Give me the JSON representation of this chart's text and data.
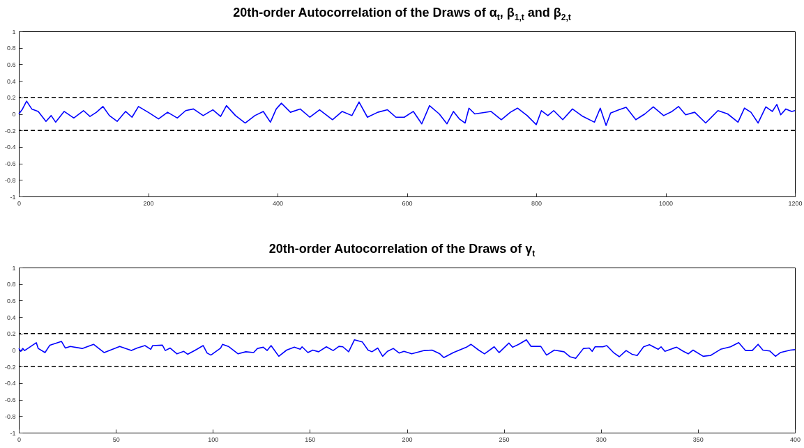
{
  "chart_data": [
    {
      "type": "line",
      "title": "20th-order Autocorrelation of the Draws of α$_{t}$, β$_{1,t}$ and β$_{2,t}$",
      "x": [
        0,
        5,
        12,
        20,
        30,
        42,
        50,
        57,
        70,
        85,
        100,
        110,
        120,
        130,
        140,
        152,
        165,
        175,
        185,
        200,
        216,
        230,
        245,
        258,
        270,
        285,
        300,
        312,
        321,
        335,
        350,
        365,
        378,
        389,
        398,
        406,
        420,
        435,
        450,
        465,
        485,
        500,
        515,
        526,
        539,
        555,
        570,
        583,
        596,
        610,
        623,
        635,
        650,
        662,
        672,
        681,
        690,
        696,
        705,
        714,
        730,
        746,
        760,
        771,
        786,
        800,
        808,
        818,
        827,
        841,
        856,
        872,
        890,
        899,
        908,
        915,
        928,
        939,
        954,
        968,
        981,
        997,
        1010,
        1020,
        1031,
        1045,
        1062,
        1081,
        1096,
        1112,
        1122,
        1132,
        1143,
        1155,
        1165,
        1172,
        1178,
        1186,
        1195,
        1200
      ],
      "ylim": [
        -1,
        1
      ],
      "yticks": [
        -1,
        -0.8,
        -0.6,
        -0.4,
        -0.2,
        0,
        0.2,
        0.4,
        0.6,
        0.8,
        1
      ],
      "xlim": [
        0,
        1200
      ],
      "xticks": [
        0,
        200,
        400,
        600,
        800,
        1000,
        1200
      ],
      "ref_lines": [
        {
          "axis": "y",
          "value": 0.2,
          "line_style": "dashed",
          "color": "#000000"
        },
        {
          "axis": "y",
          "value": -0.2,
          "line_style": "dashed",
          "color": "#000000"
        }
      ],
      "series": [
        {
          "color": "#0000ff",
          "values": [
            0,
            0.05,
            0.155,
            0.06,
            0.03,
            -0.09,
            -0.02,
            -0.1,
            0.03,
            -0.05,
            0.04,
            -0.03,
            0.02,
            0.09,
            -0.02,
            -0.09,
            0.03,
            -0.04,
            0.09,
            0.02,
            -0.06,
            0.02,
            -0.05,
            0.04,
            0.06,
            -0.02,
            0.05,
            -0.03,
            0.1,
            -0.02,
            -0.11,
            -0.02,
            0.03,
            -0.1,
            0.06,
            0.13,
            0.02,
            0.06,
            -0.04,
            0.05,
            -0.07,
            0.03,
            -0.02,
            0.145,
            -0.04,
            0.02,
            0.05,
            -0.04,
            -0.04,
            0.03,
            -0.12,
            0.1,
            0.0,
            -0.12,
            0.03,
            -0.06,
            -0.11,
            0.07,
            0.0,
            0.01,
            0.03,
            -0.07,
            0.02,
            0.07,
            -0.02,
            -0.13,
            0.04,
            -0.02,
            0.04,
            -0.07,
            0.06,
            -0.03,
            -0.1,
            0.07,
            -0.14,
            0.01,
            0.05,
            0.08,
            -0.07,
            0.0,
            0.085,
            -0.02,
            0.03,
            0.09,
            -0.01,
            0.02,
            -0.11,
            0.04,
            0.0,
            -0.1,
            0.07,
            0.02,
            -0.11,
            0.085,
            0.03,
            0.115,
            -0.01,
            0.06,
            0.03,
            0.04
          ]
        }
      ]
    },
    {
      "type": "line",
      "title": "20th-order Autocorrelation of the Draws of γ$_{t}$",
      "x": [
        0,
        1,
        2,
        3,
        9,
        10,
        13.5,
        16,
        22,
        24,
        26.5,
        32.7,
        38.5,
        44,
        52,
        58,
        61,
        65,
        68,
        69,
        74,
        75.5,
        78,
        81.5,
        85,
        87,
        91,
        95,
        97,
        99,
        104,
        105,
        108,
        113,
        117,
        121,
        123,
        126,
        128,
        130,
        134,
        138,
        142,
        145,
        146,
        149,
        151.5,
        154.5,
        158.5,
        162,
        165,
        167,
        170,
        173,
        177,
        180,
        182,
        185,
        187.5,
        190,
        193,
        196,
        198.5,
        202.5,
        209,
        213,
        217,
        219,
        224,
        230.7,
        233,
        237,
        240,
        245,
        247.5,
        252.6,
        254.5,
        257.6,
        261.6,
        264,
        269,
        272,
        276,
        281,
        284,
        287,
        291,
        294,
        295.5,
        297,
        301,
        303,
        306.5,
        309.5,
        313,
        316,
        318.7,
        322,
        325,
        329.5,
        331,
        333,
        337,
        339,
        342.5,
        345,
        347.5,
        352.7,
        356.5,
        361.7,
        366.8,
        371,
        374.5,
        378,
        381,
        383.5,
        387,
        390,
        392.5,
        397.6,
        400
      ],
      "ylim": [
        -1,
        1
      ],
      "yticks": [
        -1,
        -0.8,
        -0.6,
        -0.4,
        -0.2,
        0,
        0.2,
        0.4,
        0.6,
        0.8,
        1
      ],
      "xlim": [
        0,
        400
      ],
      "xticks": [
        0,
        50,
        100,
        150,
        200,
        250,
        300,
        350,
        400
      ],
      "ref_lines": [
        {
          "axis": "y",
          "value": 0.2,
          "line_style": "dashed",
          "color": "#000000"
        },
        {
          "axis": "y",
          "value": -0.2,
          "line_style": "dashed",
          "color": "#000000"
        }
      ],
      "series": [
        {
          "color": "#0000ff",
          "values": [
            0.02,
            -0.015,
            0.02,
            -0.005,
            0.09,
            0.02,
            -0.03,
            0.06,
            0.105,
            0.025,
            0.045,
            0.02,
            0.07,
            -0.03,
            0.045,
            -0.005,
            0.025,
            0.055,
            0.01,
            0.055,
            0.06,
            -0.005,
            0.025,
            -0.045,
            -0.015,
            -0.05,
            0,
            0.055,
            -0.035,
            -0.06,
            0.025,
            0.07,
            0.045,
            -0.045,
            -0.02,
            -0.03,
            0.02,
            0.035,
            -0.005,
            0.055,
            -0.075,
            0,
            0.035,
            0.01,
            0.04,
            -0.03,
            0,
            -0.02,
            0.04,
            -0.005,
            0.045,
            0.04,
            -0.02,
            0.125,
            0.1,
            0,
            -0.02,
            0.025,
            -0.075,
            -0.015,
            0.02,
            -0.035,
            -0.015,
            -0.045,
            -0.005,
            0,
            -0.045,
            -0.09,
            -0.03,
            0.035,
            0.07,
            0,
            -0.045,
            0.04,
            -0.03,
            0.085,
            0.035,
            0.07,
            0.125,
            0.045,
            0.045,
            -0.06,
            0,
            -0.02,
            -0.08,
            -0.1,
            0.02,
            0.025,
            -0.015,
            0.04,
            0.04,
            0.055,
            -0.03,
            -0.08,
            -0.005,
            -0.05,
            -0.065,
            0.04,
            0.065,
            0.01,
            0.04,
            -0.015,
            0.02,
            0.035,
            -0.015,
            -0.045,
            0,
            -0.075,
            -0.065,
            0.01,
            0.04,
            0.09,
            -0.005,
            -0.005,
            0.07,
            0,
            -0.01,
            -0.075,
            -0.03,
            0,
            0.005
          ]
        }
      ]
    }
  ]
}
